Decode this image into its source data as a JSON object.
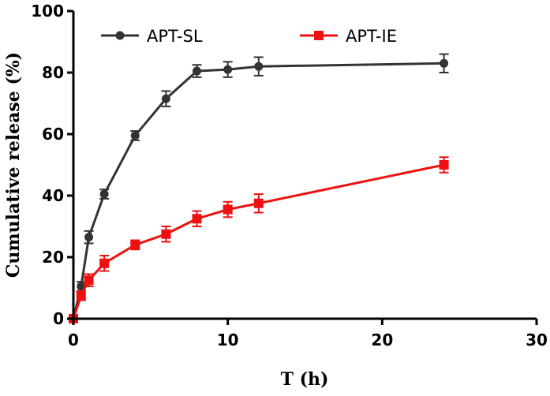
{
  "chart_data": {
    "type": "line",
    "title": "",
    "xlabel": "T (h)",
    "ylabel": "Cumulative release (%)",
    "xlim": [
      0,
      30
    ],
    "ylim": [
      0,
      100
    ],
    "xticks": [
      0,
      10,
      20,
      30
    ],
    "yticks": [
      0,
      20,
      40,
      60,
      80,
      100
    ],
    "legend_position": "top",
    "series": [
      {
        "name": "APT-SL",
        "color": "#333333",
        "marker": "circle",
        "x": [
          0,
          0.5,
          1,
          2,
          4,
          6,
          8,
          10,
          12,
          24
        ],
        "y": [
          0,
          10.5,
          26.5,
          40.5,
          59.5,
          71.5,
          80.5,
          81.0,
          82.0,
          83.0
        ],
        "err": [
          0.5,
          1.5,
          2.0,
          1.5,
          1.5,
          2.5,
          2.0,
          2.5,
          3.0,
          3.0
        ]
      },
      {
        "name": "APT-IE",
        "color": "#ee1111",
        "marker": "square",
        "x": [
          0,
          0.5,
          1,
          2,
          4,
          6,
          8,
          10,
          12,
          24
        ],
        "y": [
          0,
          7.5,
          12.5,
          18.0,
          24.0,
          27.5,
          32.5,
          35.5,
          37.5,
          50.0
        ],
        "err": [
          0.5,
          1.5,
          2.0,
          2.5,
          1.5,
          2.5,
          2.5,
          2.5,
          3.0,
          2.5
        ]
      }
    ]
  }
}
